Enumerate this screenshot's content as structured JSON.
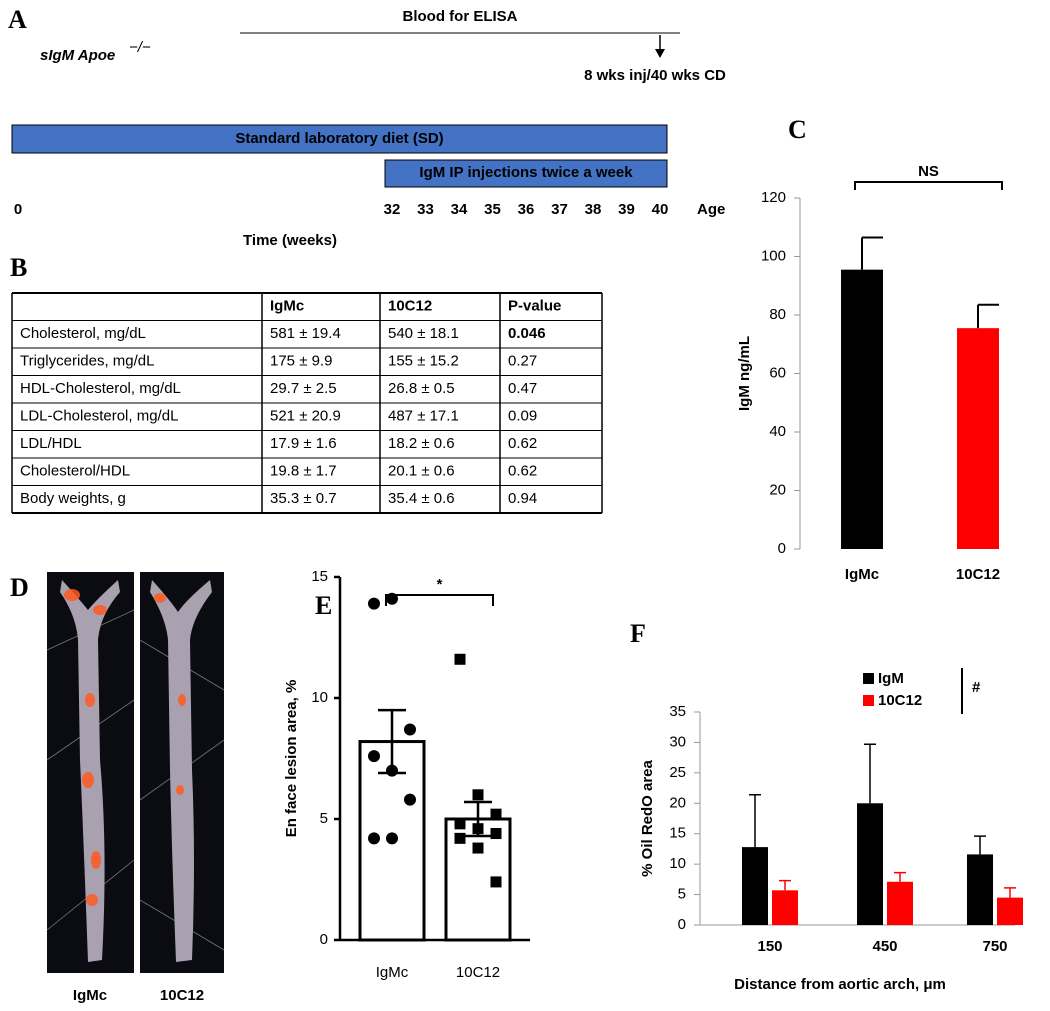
{
  "panel_labels": [
    "A",
    "B",
    "C",
    "D",
    "E",
    "F"
  ],
  "timeline": {
    "strain": "sIgM Apoe",
    "strain_sup": "−/−",
    "blood": "Blood for ELISA",
    "endpoint": "8 wks inj/40 wks CD",
    "diet": "Standard laboratory diet (SD)",
    "injections": "IgM IP injections twice a week",
    "ticks": [
      0,
      32,
      33,
      34,
      35,
      36,
      37,
      38,
      39,
      40
    ],
    "axis_label": "Age",
    "xlabel": "Time (weeks)",
    "color": "#4472c4"
  },
  "table": {
    "header": [
      "IgMc",
      "10C12",
      "P-value"
    ],
    "rows": [
      [
        "Cholesterol, mg/dL",
        "581 ± 19.4",
        "540 ± 18.1",
        "0.046"
      ],
      [
        "Triglycerides, mg/dL",
        "175 ± 9.9",
        "155 ± 15.2",
        "0.27"
      ],
      [
        "HDL-Cholesterol, mg/dL",
        "29.7 ± 2.5",
        "26.8 ± 0.5",
        "0.47"
      ],
      [
        "LDL-Cholesterol, mg/dL",
        "521 ± 20.9",
        "487 ± 17.1",
        "0.09"
      ],
      [
        "LDL/HDL",
        "17.9 ± 1.6",
        "18.2 ± 0.6",
        "0.62"
      ],
      [
        "Cholesterol/HDL",
        "19.8 ± 1.7",
        "20.1 ± 0.6",
        "0.62"
      ],
      [
        "Body weights, g",
        "35.3 ± 0.7",
        "35.4 ± 0.6",
        "0.94"
      ]
    ]
  },
  "images": {
    "labels": [
      "IgMc",
      "10C12"
    ]
  },
  "chart_data": [
    {
      "type": "bar",
      "categories": [
        "IgMc",
        "10C12"
      ],
      "values": [
        95.5,
        75.5
      ],
      "errors": [
        11,
        8
      ],
      "colors": [
        "#000000",
        "#ff0000"
      ],
      "ylabel": "IgM ng/mL",
      "ylim": [
        0,
        120
      ],
      "yticks": [
        0,
        20,
        40,
        60,
        80,
        100,
        120
      ],
      "annotation": "NS"
    },
    {
      "type": "bar_scatter",
      "categories": [
        "IgMc",
        "10C12"
      ],
      "values": [
        8.2,
        5.0
      ],
      "errors": [
        1.3,
        0.7
      ],
      "points": [
        [
          13.9,
          14.1,
          8.7,
          7.6,
          7.0,
          5.8,
          4.2,
          4.2
        ],
        [
          11.6,
          6.0,
          5.2,
          4.8,
          4.6,
          4.4,
          4.2,
          3.8,
          2.4
        ]
      ],
      "ylabel": "En face lesion area, %",
      "ylim": [
        0,
        15
      ],
      "yticks": [
        0,
        5,
        10,
        15
      ],
      "annotation": "*"
    },
    {
      "type": "grouped_bar",
      "categories": [
        "150",
        "450",
        "750"
      ],
      "series": [
        {
          "name": "IgM",
          "color": "#000000",
          "values": [
            12.8,
            20.0,
            11.6
          ],
          "errors": [
            8.6,
            9.7,
            3.0
          ]
        },
        {
          "name": "10C12",
          "color": "#ff0000",
          "values": [
            5.7,
            7.1,
            4.5
          ],
          "errors": [
            1.6,
            1.5,
            1.6
          ]
        }
      ],
      "xlabel": "Distance from aortic arch, μm",
      "ylabel": "% Oil RedO area",
      "ylim": [
        0,
        35
      ],
      "yticks": [
        0,
        5,
        10,
        15,
        20,
        25,
        30,
        35
      ],
      "annotation": "#",
      "legend": "top-right"
    }
  ]
}
